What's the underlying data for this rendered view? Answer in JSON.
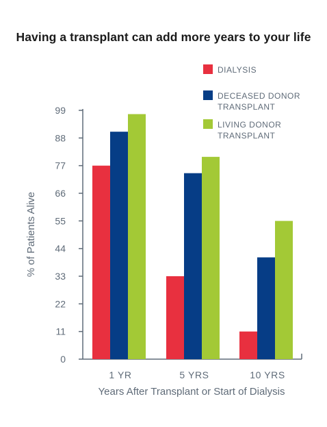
{
  "chart_data": {
    "type": "bar",
    "title": "Having a transplant can add more years to your life",
    "xlabel": "Years After Transplant or Start of Dialysis",
    "ylabel": "% of Patients Alive",
    "categories": [
      "1 YR",
      "5 YRS",
      "10 YRS"
    ],
    "yticks": [
      "0",
      "11",
      "22",
      "33",
      "44",
      "55",
      "66",
      "77",
      "88",
      "99"
    ],
    "ylim": [
      0,
      99
    ],
    "grid": false,
    "legend_position": "top-right",
    "series": [
      {
        "name": [
          "DIALYSIS"
        ],
        "values": [
          77,
          33,
          11
        ],
        "color": "#e8303f"
      },
      {
        "name": [
          "DECEASED DONOR",
          "TRANSPLANT"
        ],
        "values": [
          90.5,
          74,
          40.5
        ],
        "color": "#063d86"
      },
      {
        "name": [
          "LIVING DONOR",
          "TRANSPLANT"
        ],
        "values": [
          97.5,
          80.5,
          55
        ],
        "color": "#a3c936"
      }
    ],
    "colors": {
      "axis": "#5f6b78",
      "text": "#5f6b78"
    }
  }
}
